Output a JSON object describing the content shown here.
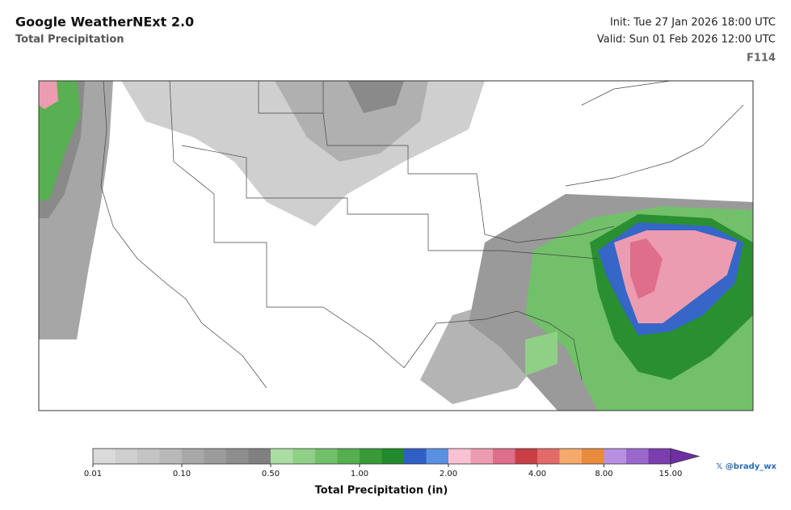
{
  "header": {
    "title": "Google WeatherNExt 2.0",
    "subtitle": "Total Precipitation",
    "init": "Init: Tue 27 Jan 2026 18:00 UTC",
    "valid": "Valid: Sun 01 Feb 2026 12:00 UTC",
    "forecast_hour": "F114"
  },
  "colorbar": {
    "label": "Total Precipitation (in)",
    "colors": [
      "#dadada",
      "#cfcfcf",
      "#c4c4c4",
      "#b8b8b8",
      "#a8a8a8",
      "#9b9b9b",
      "#8e8e8e",
      "#808080",
      "#aadda2",
      "#8fd086",
      "#72c06a",
      "#55ae50",
      "#3a9a3a",
      "#218a2a",
      "#2f5fc4",
      "#5a90e0",
      "#f8c2d2",
      "#ec9cb0",
      "#de6e8a",
      "#c83e44",
      "#e46a6a",
      "#f5aa6c",
      "#e88c3c",
      "#b890e2",
      "#9a68cc",
      "#7a3eae"
    ],
    "extend_color": "#6e2fa2",
    "ticks": [
      0.01,
      {
        "value": 0.1,
        "label": "0.10"
      },
      {
        "value": 0.5,
        "label": "0.50"
      },
      {
        "value": 1,
        "label": "1.00"
      },
      {
        "value": 2,
        "label": "2.00"
      },
      {
        "value": 4,
        "label": "4.00"
      },
      {
        "value": 8,
        "label": "8.00"
      },
      {
        "value": 15,
        "label": "15.00"
      }
    ]
  },
  "credit": "𝕏 @brady_wx"
}
